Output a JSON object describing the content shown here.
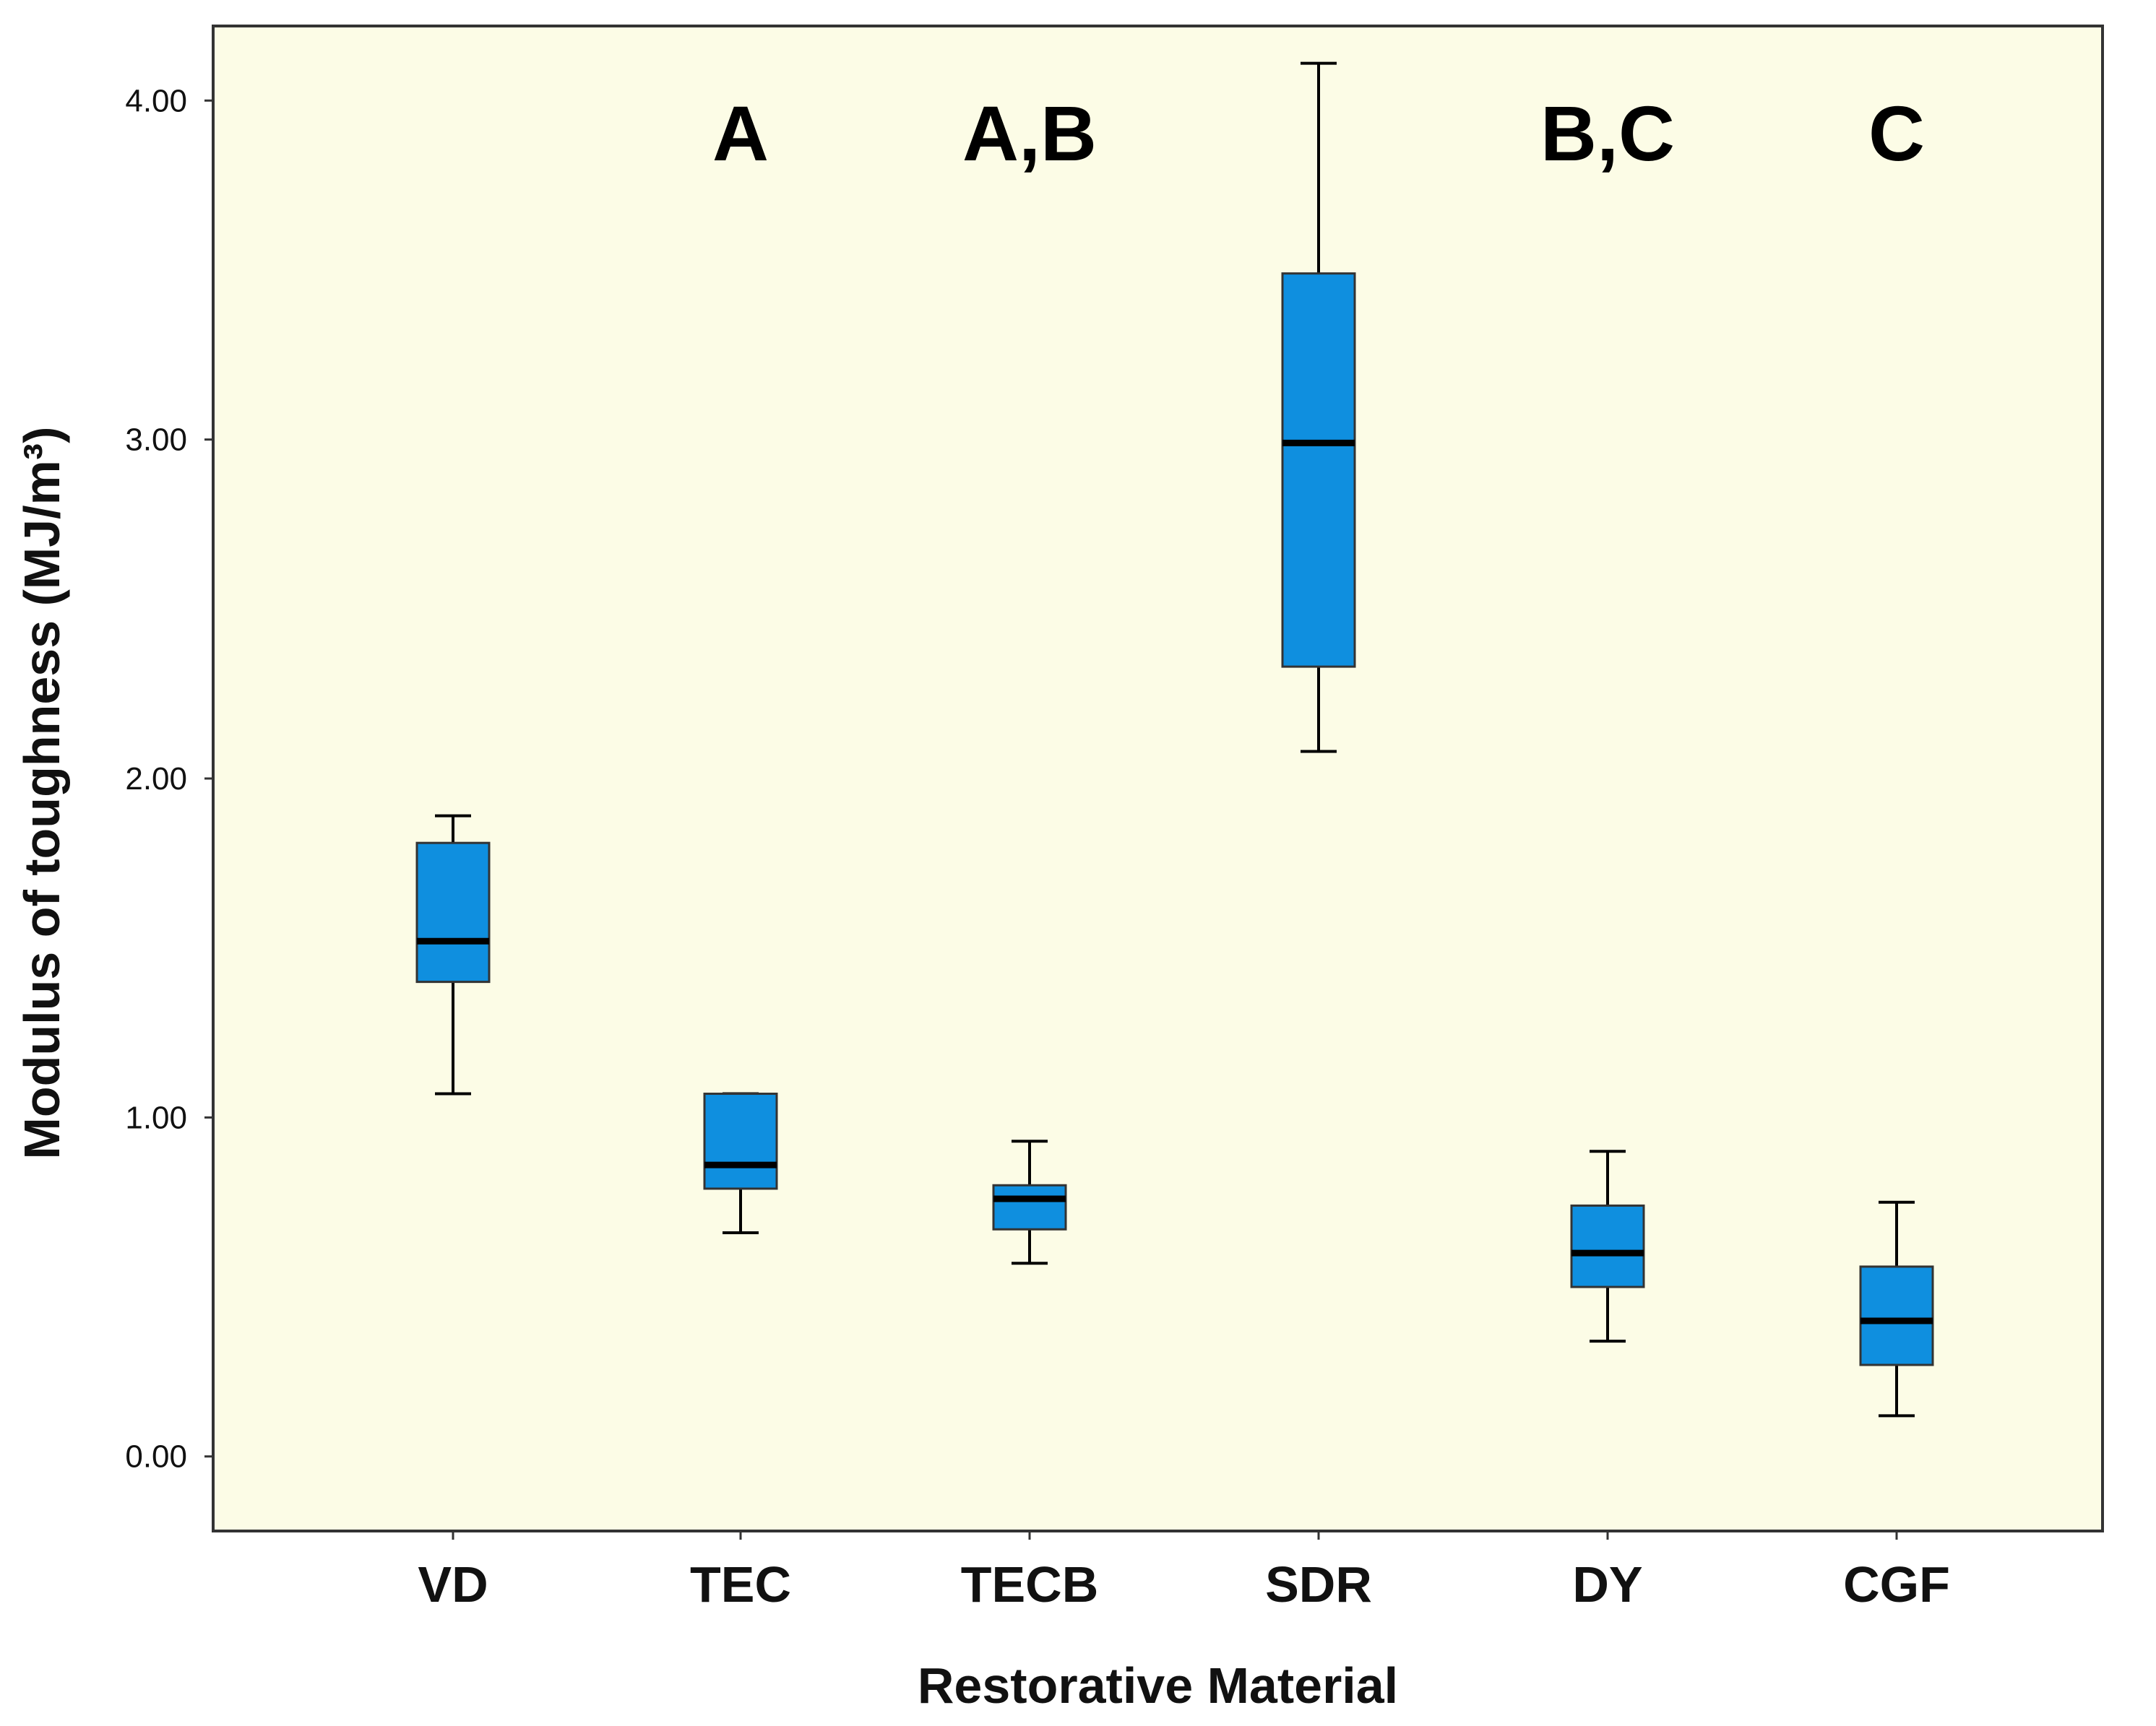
{
  "colors": {
    "plot_background": "#fcfce6",
    "box_fill": "#0f8fdf",
    "box_stroke": "#333333",
    "median": "#000000",
    "frame": "#333333"
  },
  "chart_data": {
    "type": "boxplot",
    "title": "",
    "xlabel": "Restorative Material",
    "ylabel": "Modulus of toughness (MJ/m³)",
    "ylim": [
      -0.22,
      4.22
    ],
    "yticks": [
      0.0,
      1.0,
      2.0,
      3.0,
      4.0
    ],
    "ytick_labels": [
      "0.00",
      "1.00",
      "2.00",
      "3.00",
      "4.00"
    ],
    "categories": [
      "VD",
      "TEC",
      "TECB",
      "SDR",
      "DY",
      "CGF"
    ],
    "boxes": [
      {
        "category": "VD",
        "whisker_low": 1.07,
        "q1": 1.4,
        "median": 1.52,
        "q3": 1.81,
        "whisker_high": 1.89,
        "letter": ""
      },
      {
        "category": "TEC",
        "whisker_low": 0.66,
        "q1": 0.79,
        "median": 0.86,
        "q3": 1.07,
        "whisker_high": 1.07,
        "letter": "A"
      },
      {
        "category": "TECB",
        "whisker_low": 0.57,
        "q1": 0.67,
        "median": 0.76,
        "q3": 0.8,
        "whisker_high": 0.93,
        "letter": "A,B"
      },
      {
        "category": "SDR",
        "whisker_low": 2.08,
        "q1": 2.33,
        "median": 2.99,
        "q3": 3.49,
        "whisker_high": 4.11,
        "letter": ""
      },
      {
        "category": "DY",
        "whisker_low": 0.34,
        "q1": 0.5,
        "median": 0.6,
        "q3": 0.74,
        "whisker_high": 0.9,
        "letter": "B,C"
      },
      {
        "category": "CGF",
        "whisker_low": 0.12,
        "q1": 0.27,
        "median": 0.4,
        "q3": 0.56,
        "whisker_high": 0.75,
        "letter": "C"
      }
    ]
  }
}
